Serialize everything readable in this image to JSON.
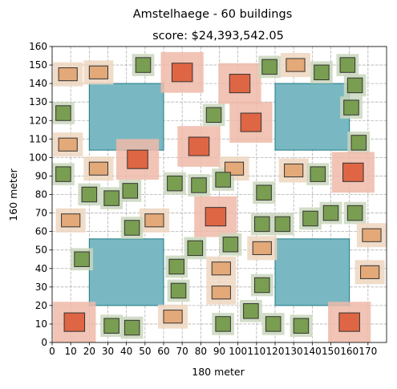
{
  "chart_data": {
    "type": "scatter",
    "suptitle": "Amstelhaege - 60 buildings",
    "title": "score: $24,393,542.05",
    "xlabel": "180 meter",
    "ylabel": "160 meter",
    "xlim": [
      0,
      180
    ],
    "ylim": [
      0,
      160
    ],
    "xticks": [
      0,
      10,
      20,
      30,
      40,
      50,
      60,
      70,
      80,
      90,
      100,
      110,
      120,
      130,
      140,
      150,
      160,
      170
    ],
    "yticks": [
      0,
      10,
      20,
      30,
      40,
      50,
      60,
      70,
      80,
      90,
      100,
      110,
      120,
      130,
      140,
      150,
      160
    ],
    "grid": true,
    "colors": {
      "water_fill": "#79b8c2",
      "water_edge": "#1f7b85",
      "bungalow_fill": "#e4a978",
      "bungalow_clearance": "#efd6c0",
      "maison_fill": "#df6644",
      "maison_clearance": "#efbaa9",
      "single_fill": "#7a9e51",
      "single_clearance": "#cad7bd",
      "edge": "#333333"
    },
    "water": [
      {
        "x0": 20,
        "y0": 104,
        "x1": 60,
        "y1": 140
      },
      {
        "x0": 120,
        "y0": 104,
        "x1": 160,
        "y1": 140
      },
      {
        "x0": 20,
        "y0": 20,
        "x1": 60,
        "y1": 56
      },
      {
        "x0": 120,
        "y0": 20,
        "x1": 160,
        "y1": 56
      }
    ],
    "building_types": {
      "single": {
        "w": 8,
        "h": 8,
        "clearance": 2
      },
      "bungalow": {
        "w": 10,
        "h": 7,
        "clearance": 3
      },
      "maison": {
        "w": 11,
        "h": 10,
        "clearance": 6
      }
    },
    "buildings": [
      {
        "type": "bungalow",
        "cx": 8.5,
        "cy": 145
      },
      {
        "type": "bungalow",
        "cx": 25,
        "cy": 146
      },
      {
        "type": "single",
        "cx": 49,
        "cy": 150
      },
      {
        "type": "maison",
        "cx": 70,
        "cy": 146
      },
      {
        "type": "maison",
        "cx": 101,
        "cy": 140
      },
      {
        "type": "single",
        "cx": 117,
        "cy": 149
      },
      {
        "type": "bungalow",
        "cx": 131,
        "cy": 150
      },
      {
        "type": "single",
        "cx": 145,
        "cy": 146
      },
      {
        "type": "single",
        "cx": 159,
        "cy": 150
      },
      {
        "type": "single",
        "cx": 163,
        "cy": 139
      },
      {
        "type": "single",
        "cx": 161,
        "cy": 127
      },
      {
        "type": "single",
        "cx": 6,
        "cy": 124
      },
      {
        "type": "single",
        "cx": 87,
        "cy": 123
      },
      {
        "type": "maison",
        "cx": 107,
        "cy": 119
      },
      {
        "type": "bungalow",
        "cx": 8.5,
        "cy": 107
      },
      {
        "type": "maison",
        "cx": 79,
        "cy": 106
      },
      {
        "type": "single",
        "cx": 165,
        "cy": 108
      },
      {
        "type": "maison",
        "cx": 46,
        "cy": 99
      },
      {
        "type": "single",
        "cx": 6,
        "cy": 91
      },
      {
        "type": "bungalow",
        "cx": 25,
        "cy": 94
      },
      {
        "type": "bungalow",
        "cx": 98,
        "cy": 94
      },
      {
        "type": "bungalow",
        "cx": 130,
        "cy": 93
      },
      {
        "type": "single",
        "cx": 143,
        "cy": 91
      },
      {
        "type": "maison",
        "cx": 162,
        "cy": 92
      },
      {
        "type": "single",
        "cx": 66,
        "cy": 86
      },
      {
        "type": "single",
        "cx": 79,
        "cy": 85
      },
      {
        "type": "single",
        "cx": 92,
        "cy": 88
      },
      {
        "type": "single",
        "cx": 20,
        "cy": 80
      },
      {
        "type": "single",
        "cx": 32,
        "cy": 78
      },
      {
        "type": "single",
        "cx": 42,
        "cy": 82
      },
      {
        "type": "single",
        "cx": 114,
        "cy": 81
      },
      {
        "type": "bungalow",
        "cx": 10,
        "cy": 66
      },
      {
        "type": "bungalow",
        "cx": 55,
        "cy": 66
      },
      {
        "type": "maison",
        "cx": 88,
        "cy": 68
      },
      {
        "type": "single",
        "cx": 43,
        "cy": 62
      },
      {
        "type": "single",
        "cx": 113,
        "cy": 64
      },
      {
        "type": "single",
        "cx": 124,
        "cy": 64
      },
      {
        "type": "single",
        "cx": 139,
        "cy": 67
      },
      {
        "type": "single",
        "cx": 150,
        "cy": 70
      },
      {
        "type": "single",
        "cx": 163,
        "cy": 70
      },
      {
        "type": "bungalow",
        "cx": 172,
        "cy": 58
      },
      {
        "type": "single",
        "cx": 77,
        "cy": 51
      },
      {
        "type": "single",
        "cx": 96,
        "cy": 53
      },
      {
        "type": "bungalow",
        "cx": 113,
        "cy": 51
      },
      {
        "type": "single",
        "cx": 16,
        "cy": 45
      },
      {
        "type": "single",
        "cx": 67,
        "cy": 41
      },
      {
        "type": "bungalow",
        "cx": 91,
        "cy": 40
      },
      {
        "type": "bungalow",
        "cx": 171,
        "cy": 38
      },
      {
        "type": "single",
        "cx": 68,
        "cy": 28
      },
      {
        "type": "bungalow",
        "cx": 91,
        "cy": 27
      },
      {
        "type": "single",
        "cx": 113,
        "cy": 31
      },
      {
        "type": "single",
        "cx": 107,
        "cy": 17
      },
      {
        "type": "maison",
        "cx": 12,
        "cy": 11
      },
      {
        "type": "single",
        "cx": 32,
        "cy": 9
      },
      {
        "type": "single",
        "cx": 43,
        "cy": 8
      },
      {
        "type": "bungalow",
        "cx": 65,
        "cy": 14
      },
      {
        "type": "single",
        "cx": 92,
        "cy": 10
      },
      {
        "type": "single",
        "cx": 119,
        "cy": 10
      },
      {
        "type": "single",
        "cx": 134,
        "cy": 9
      },
      {
        "type": "maison",
        "cx": 160,
        "cy": 11
      }
    ]
  }
}
